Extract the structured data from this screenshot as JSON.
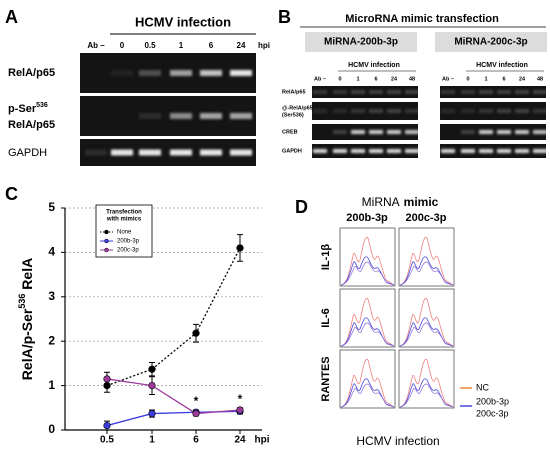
{
  "figure": {
    "panel_a": {
      "label": "A",
      "header": "HCMV infection",
      "lanes": [
        "Ab –",
        "0",
        "0.5",
        "1",
        "6",
        "24"
      ],
      "unit": "hpi",
      "row_rela": "RelA/p65",
      "row_pser": {
        "main": "p-Ser",
        "sup": "536",
        "line2": "RelA/p65"
      },
      "row_gapdh": "GAPDH"
    },
    "panel_b": {
      "label": "B",
      "title": "MicroRNA mimic transfection",
      "groups": [
        {
          "name": "MiRNA-200b-3p",
          "header": "HCMV infection",
          "lanes": [
            "Ab –",
            "0",
            "1",
            "6",
            "24",
            "48"
          ]
        },
        {
          "name": "MiRNA-200c-3p",
          "header": "HCMV infection",
          "lanes": [
            "Ab –",
            "0",
            "1",
            "6",
            "24",
            "48"
          ]
        }
      ],
      "rows": [
        "RelA/p65",
        "@-RelA/p65",
        "(Ser536)",
        "CREB",
        "GAPDH"
      ]
    },
    "panel_d": {
      "label": "D",
      "title": {
        "text": "MiRNA",
        "bold": "mimic"
      },
      "columns": [
        "200b-3p",
        "200c-3p"
      ],
      "rows": [
        "IL-1β",
        "IL-6",
        "RANTES"
      ],
      "legend": [
        {
          "name": "NC",
          "color": "#f0883a"
        },
        {
          "name": "200b-3p",
          "color": "#4848d8"
        },
        {
          "name": "200c-3p"
        }
      ],
      "xlabel": "HCMV infection"
    }
  },
  "chart_data": {
    "type": "line",
    "label": "C",
    "ylabel": {
      "main": "RelA/p-Ser",
      "sup": "536",
      "suffix": " RelA"
    },
    "categories": [
      "0.5",
      "1",
      "6",
      "24"
    ],
    "x_unit": "hpi",
    "ylim": [
      0,
      5
    ],
    "yticks": [
      0,
      1,
      2,
      3,
      4,
      5
    ],
    "grid": true,
    "legend_title": [
      "Transfection",
      "with mimics"
    ],
    "series": [
      {
        "name": "None",
        "color": "#000000",
        "dash": true,
        "values": [
          1.0,
          1.37,
          2.18,
          4.1
        ],
        "errors": [
          0.15,
          0.15,
          0.2,
          0.3
        ]
      },
      {
        "name": "200b-3p",
        "color": "#3a3adf",
        "dash": false,
        "values": [
          0.1,
          0.37,
          0.4,
          0.42
        ],
        "errors": [
          0.1,
          0.08,
          0.05,
          0.06
        ]
      },
      {
        "name": "200c-3p",
        "color": "#9b3a9b",
        "dash": false,
        "values": [
          1.15,
          1.0,
          0.37,
          0.45
        ],
        "errors": [
          0.15,
          0.2,
          0.05,
          0.05
        ]
      }
    ],
    "annotations": [
      {
        "text": "*",
        "category": "6"
      },
      {
        "text": "*",
        "category": "24"
      }
    ]
  }
}
